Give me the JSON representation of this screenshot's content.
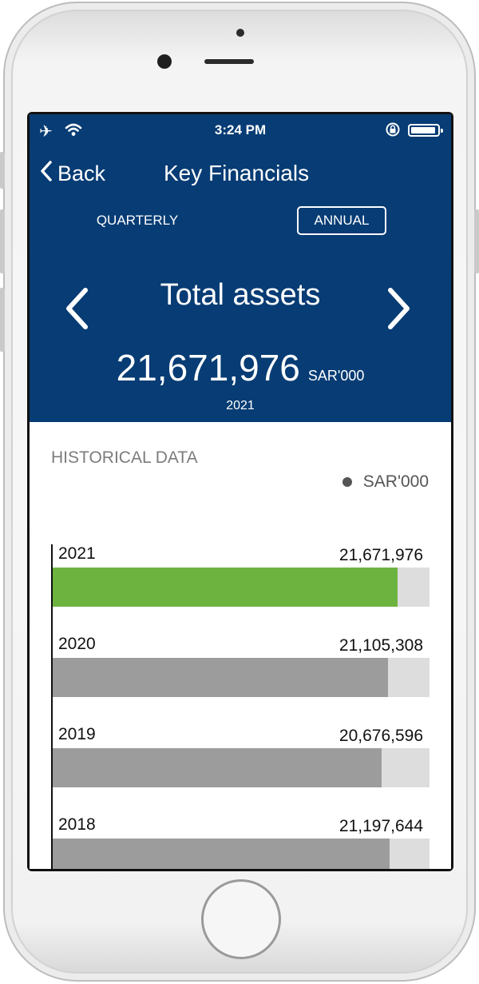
{
  "status_bar": {
    "time": "3:24 PM",
    "icons": [
      "airplane-icon",
      "wifi-icon",
      "orientation-lock-icon",
      "battery-icon"
    ]
  },
  "nav": {
    "back_label": "Back",
    "title": "Key Financials"
  },
  "period_tabs": {
    "quarterly": "QUARTERLY",
    "annual": "ANNUAL",
    "selected": "ANNUAL"
  },
  "metric": {
    "title": "Total assets",
    "value": "21,671,976",
    "unit": "SAR'000",
    "year": "2021"
  },
  "historical": {
    "title": "HISTORICAL DATA",
    "legend": "SAR'000"
  },
  "colors": {
    "header_bg": "#073c74",
    "highlight_bar": "#6db33f",
    "default_bar": "#9c9c9c",
    "track": "#dddddd"
  },
  "chart_data": {
    "type": "bar",
    "orientation": "horizontal",
    "categories": [
      "2021",
      "2020",
      "2019",
      "2018"
    ],
    "values": [
      21671976,
      21105308,
      20676596,
      21197644
    ],
    "value_labels": [
      "21,671,976",
      "21,105,308",
      "20,676,596",
      "21,197,644"
    ],
    "max": 23700000,
    "highlighted": "2021"
  }
}
